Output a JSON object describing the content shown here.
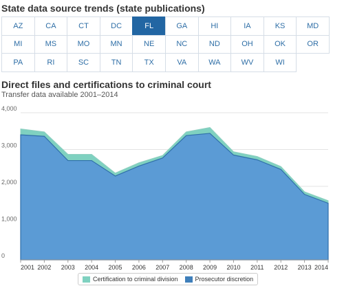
{
  "header": {
    "title": "State data source trends (state publications)"
  },
  "states": {
    "active": "FL",
    "items": [
      "AZ",
      "CA",
      "CT",
      "DC",
      "FL",
      "GA",
      "HI",
      "IA",
      "KS",
      "MD",
      "MI",
      "MS",
      "MO",
      "MN",
      "NE",
      "NC",
      "ND",
      "OH",
      "OK",
      "OR",
      "PA",
      "RI",
      "SC",
      "TN",
      "TX",
      "VA",
      "WA",
      "WV",
      "WI"
    ]
  },
  "colors": {
    "accent": "#2266a3",
    "prosecutor": "#5b9bd5",
    "certification": "#7fd1c0"
  },
  "chart_data": {
    "type": "area",
    "title": "Direct files and certifications to criminal court",
    "subtitle": "Transfer data available 2001–2014",
    "stacked": true,
    "x": [
      2001,
      2002,
      2003,
      2004,
      2005,
      2006,
      2007,
      2008,
      2009,
      2010,
      2011,
      2012,
      2013,
      2014
    ],
    "series": [
      {
        "name": "Prosecutor discretion",
        "color": "#5b9bd5",
        "values": [
          3400,
          3360,
          2700,
          2700,
          2280,
          2550,
          2770,
          3380,
          3440,
          2850,
          2720,
          2460,
          1780,
          1540
        ]
      },
      {
        "name": "Certification to criminal division",
        "color": "#7fd1c0",
        "values": [
          160,
          120,
          170,
          170,
          80,
          90,
          70,
          100,
          160,
          90,
          90,
          80,
          70,
          70
        ]
      }
    ],
    "ylim": [
      0,
      4000
    ],
    "yticks": [
      0,
      1000,
      2000,
      3000,
      4000
    ],
    "ytick_labels": [
      "0",
      "1,000",
      "2,000",
      "3,000",
      "4,000"
    ],
    "grid": true,
    "legend_position": "bottom-center",
    "legend": [
      "Certification to criminal division",
      "Prosecutor discretion"
    ]
  }
}
